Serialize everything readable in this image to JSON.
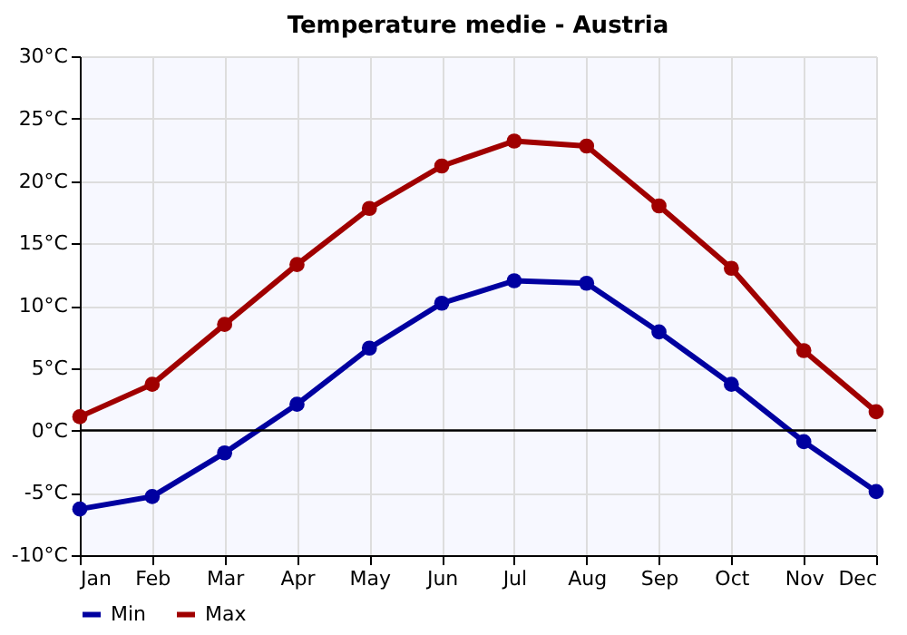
{
  "chart_data": {
    "type": "line",
    "title": "Temperature medie - Austria",
    "categories": [
      "Jan",
      "Feb",
      "Mar",
      "Apr",
      "May",
      "Jun",
      "Jul",
      "Aug",
      "Sep",
      "Oct",
      "Nov",
      "Dec"
    ],
    "series": [
      {
        "name": "Min",
        "color": "#0000a0",
        "values": [
          -6.3,
          -5.3,
          -1.8,
          2.1,
          6.6,
          10.2,
          12.0,
          11.8,
          7.9,
          3.7,
          -0.9,
          -4.9
        ]
      },
      {
        "name": "Max",
        "color": "#a00000",
        "values": [
          1.1,
          3.7,
          8.5,
          13.3,
          17.8,
          21.2,
          23.2,
          22.8,
          18.0,
          13.0,
          6.4,
          1.5
        ]
      }
    ],
    "ylim": [
      -10,
      30
    ],
    "yticks": [
      {
        "value": -10,
        "label": "-10°C"
      },
      {
        "value": -5,
        "label": "-5°C"
      },
      {
        "value": 0,
        "label": "0°C"
      },
      {
        "value": 5,
        "label": "5°C"
      },
      {
        "value": 10,
        "label": "10°C"
      },
      {
        "value": 15,
        "label": "15°C"
      },
      {
        "value": 20,
        "label": "20°C"
      },
      {
        "value": 25,
        "label": "25°C"
      },
      {
        "value": 30,
        "label": "30°C"
      }
    ],
    "ref_lines": [
      {
        "axis": "y",
        "value": 0,
        "color": "#000000"
      }
    ],
    "grid": true,
    "legend": "bottom left",
    "marker": "circle",
    "line_style": "solid"
  }
}
